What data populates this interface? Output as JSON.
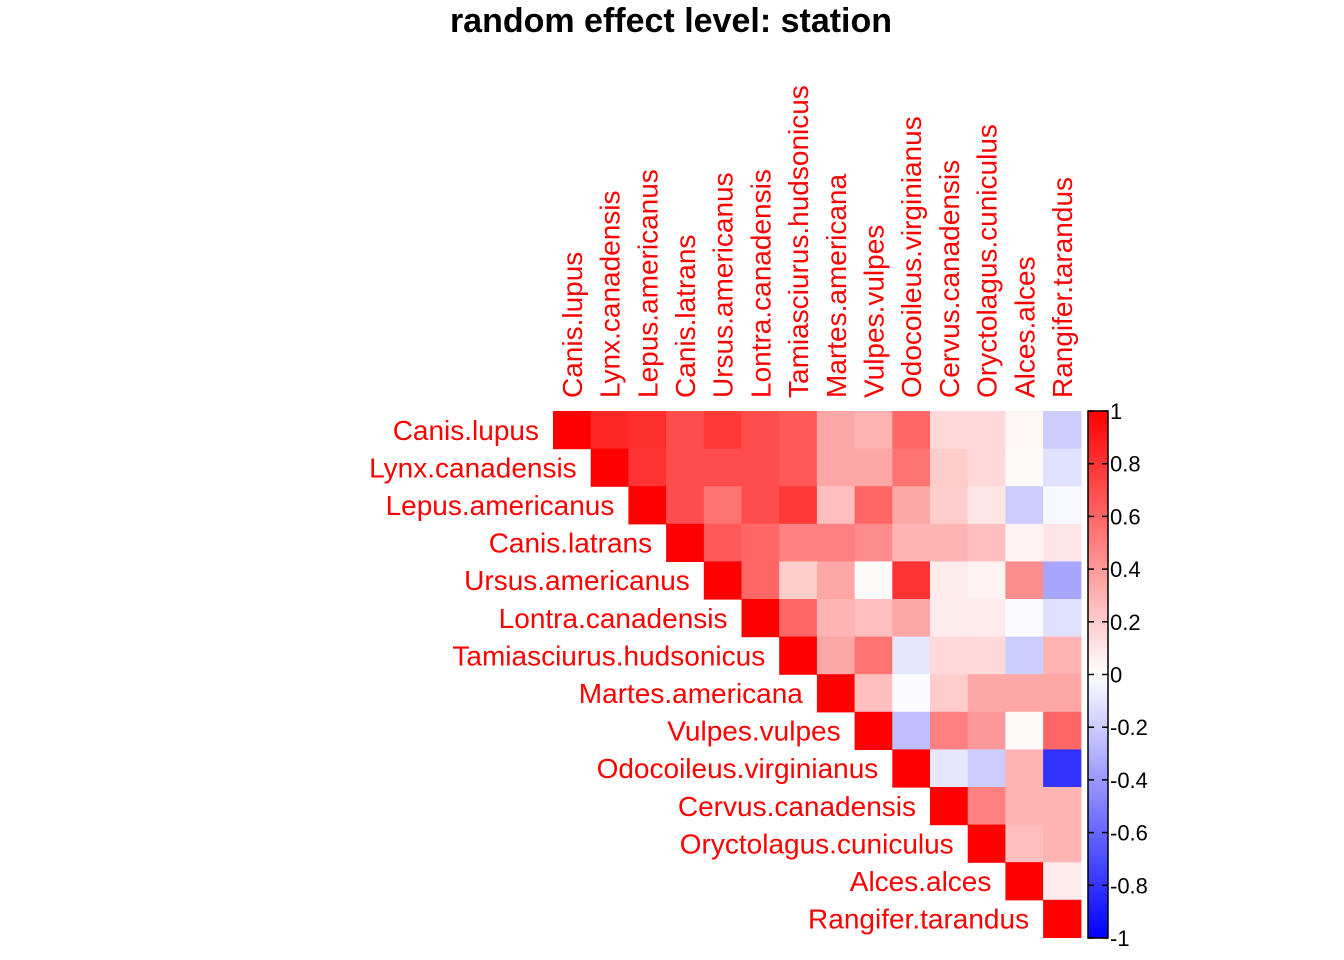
{
  "chart_data": {
    "type": "heatmap",
    "title": "random effect level: station",
    "layout": "upper-triangle",
    "label_color": "#ff0000",
    "species": [
      "Canis.lupus",
      "Lynx.canadensis",
      "Lepus.americanus",
      "Canis.latrans",
      "Ursus.americanus",
      "Lontra.canadensis",
      "Tamiasciurus.hudsonicus",
      "Martes.americana",
      "Vulpes.vulpes",
      "Odocoileus.virginianus",
      "Cervus.canadensis",
      "Oryctolagus.cuniculus",
      "Alces.alces",
      "Rangifer.tarandus"
    ],
    "matrix": [
      [
        1,
        0.85,
        0.82,
        0.7,
        0.78,
        0.7,
        0.65,
        0.35,
        0.3,
        0.6,
        0.15,
        0.15,
        0.03,
        -0.2
      ],
      [
        null,
        1,
        0.8,
        0.7,
        0.7,
        0.7,
        0.65,
        0.35,
        0.35,
        0.55,
        0.2,
        0.15,
        0.02,
        -0.12
      ],
      [
        null,
        null,
        1,
        0.7,
        0.55,
        0.7,
        0.78,
        0.25,
        0.6,
        0.35,
        0.2,
        0.1,
        -0.2,
        -0.03
      ],
      [
        null,
        null,
        null,
        1,
        0.65,
        0.6,
        0.5,
        0.5,
        0.45,
        0.3,
        0.3,
        0.25,
        0.05,
        0.1
      ],
      [
        null,
        null,
        null,
        null,
        1,
        0.6,
        0.2,
        0.35,
        0.02,
        0.8,
        0.08,
        0.05,
        0.45,
        -0.35
      ],
      [
        null,
        null,
        null,
        null,
        null,
        1,
        0.6,
        0.3,
        0.25,
        0.35,
        0.08,
        0.08,
        -0.02,
        -0.12
      ],
      [
        null,
        null,
        null,
        null,
        null,
        null,
        1,
        0.35,
        0.55,
        -0.1,
        0.15,
        0.15,
        -0.2,
        0.3
      ],
      [
        null,
        null,
        null,
        null,
        null,
        null,
        null,
        1,
        0.25,
        -0.02,
        0.2,
        0.35,
        0.35,
        0.35
      ],
      [
        null,
        null,
        null,
        null,
        null,
        null,
        null,
        null,
        1,
        -0.25,
        0.5,
        0.4,
        0.02,
        0.6
      ],
      [
        null,
        null,
        null,
        null,
        null,
        null,
        null,
        null,
        null,
        1,
        -0.1,
        -0.2,
        0.3,
        -0.8
      ],
      [
        null,
        null,
        null,
        null,
        null,
        null,
        null,
        null,
        null,
        null,
        1,
        0.5,
        0.3,
        0.3
      ],
      [
        null,
        null,
        null,
        null,
        null,
        null,
        null,
        null,
        null,
        null,
        null,
        1,
        0.25,
        0.3
      ],
      [
        null,
        null,
        null,
        null,
        null,
        null,
        null,
        null,
        null,
        null,
        null,
        null,
        1,
        0.08
      ],
      [
        null,
        null,
        null,
        null,
        null,
        null,
        null,
        null,
        null,
        null,
        null,
        null,
        null,
        1
      ]
    ],
    "colorscale": {
      "range": [
        -1,
        1
      ],
      "low": "#0000ff",
      "mid": "#ffffff",
      "high": "#ff0000",
      "ticks": [
        "1",
        "0.8",
        "0.6",
        "0.4",
        "0.2",
        "0",
        "-0.2",
        "-0.4",
        "-0.6",
        "-0.8",
        "-1"
      ]
    }
  }
}
